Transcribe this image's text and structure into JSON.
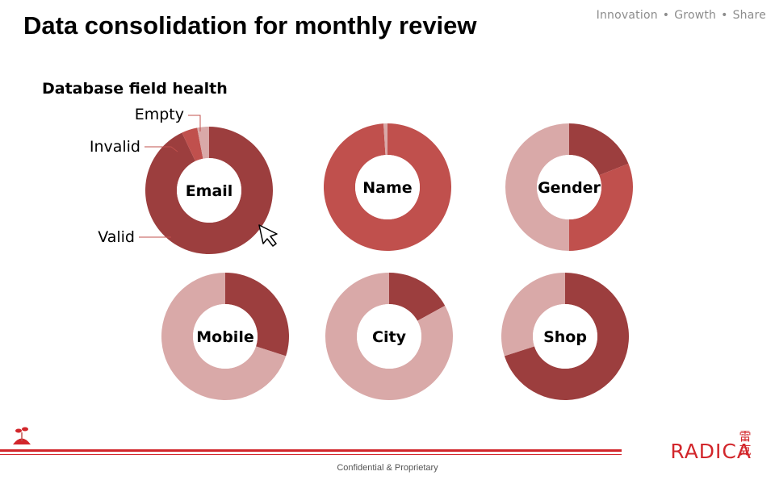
{
  "slide": {
    "title": "Data consolidation for monthly review",
    "tagline": [
      "Innovation",
      "Growth",
      "Share"
    ],
    "subtitle": "Database field health",
    "footer": "Confidential & Proprietary",
    "brand": "RADICA",
    "brand_cjk": [
      "雷",
      "克"
    ]
  },
  "colors": {
    "valid": "#9c3e3e",
    "invalid": "#c0504d",
    "empty": "#d9a9a8",
    "brand_red": "#d2262b"
  },
  "chart_data": {
    "type": "pie",
    "variant": "donut",
    "title": "Database field health",
    "legend_callouts": [
      "Empty",
      "Invalid",
      "Valid"
    ],
    "charts": [
      {
        "label": "Email",
        "series": [
          {
            "name": "Valid",
            "value": 93
          },
          {
            "name": "Invalid",
            "value": 4
          },
          {
            "name": "Empty",
            "value": 3
          }
        ]
      },
      {
        "label": "Name",
        "series": [
          {
            "name": "Valid",
            "value": 0
          },
          {
            "name": "Invalid",
            "value": 99
          },
          {
            "name": "Empty",
            "value": 1
          }
        ]
      },
      {
        "label": "Gender",
        "series": [
          {
            "name": "Valid",
            "value": 19
          },
          {
            "name": "Invalid",
            "value": 31
          },
          {
            "name": "Empty",
            "value": 50
          }
        ]
      },
      {
        "label": "Mobile",
        "series": [
          {
            "name": "Valid",
            "value": 30
          },
          {
            "name": "Invalid",
            "value": 0
          },
          {
            "name": "Empty",
            "value": 70
          }
        ]
      },
      {
        "label": "City",
        "series": [
          {
            "name": "Valid",
            "value": 17
          },
          {
            "name": "Invalid",
            "value": 0
          },
          {
            "name": "Empty",
            "value": 83
          }
        ]
      },
      {
        "label": "Shop",
        "series": [
          {
            "name": "Valid",
            "value": 70
          },
          {
            "name": "Invalid",
            "value": 0
          },
          {
            "name": "Empty",
            "value": 30
          }
        ]
      }
    ]
  }
}
